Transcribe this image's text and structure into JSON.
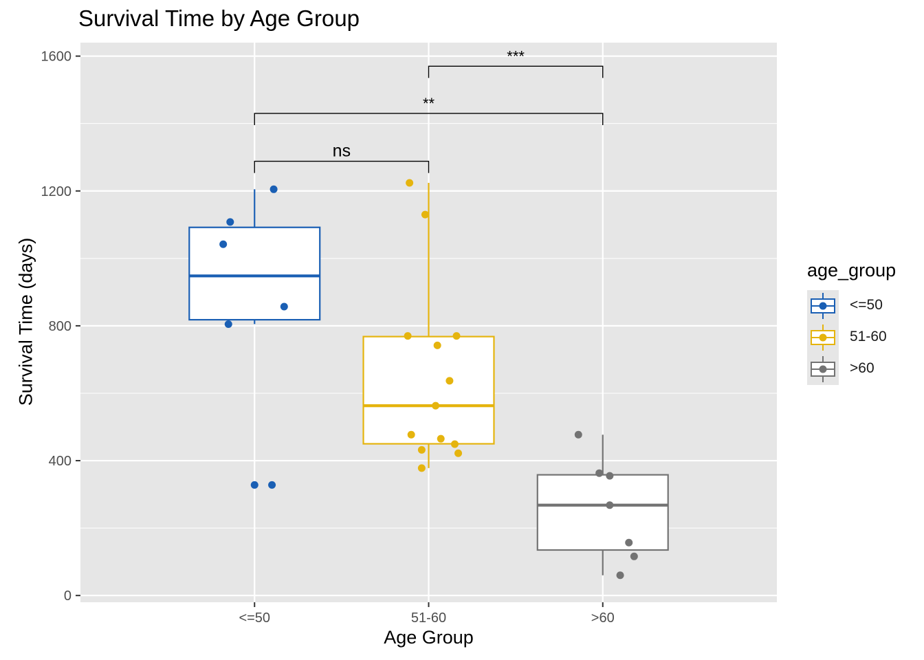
{
  "chart_data": {
    "type": "boxplot",
    "title": "Survival Time by Age Group",
    "xlabel": "Age Group",
    "ylabel": "Survival Time (days)",
    "ylim": [
      -20,
      1640
    ],
    "yticks": [
      0,
      400,
      800,
      1200,
      1600
    ],
    "categories": [
      "<=50",
      "51-60",
      ">60"
    ],
    "grid": true,
    "legend": {
      "title": "age_group",
      "position": "right",
      "entries": [
        "<=50",
        "51-60",
        ">60"
      ]
    },
    "series": [
      {
        "category": "<=50",
        "color": "#1a5fb4",
        "box": {
          "whisker_low": 805,
          "q1": 818,
          "median": 948,
          "q3": 1092,
          "whisker_high": 1205
        },
        "points": [
          {
            "x": 0.11,
            "y": 1205
          },
          {
            "x": -0.14,
            "y": 1108
          },
          {
            "x": -0.18,
            "y": 1042
          },
          {
            "x": 0.17,
            "y": 857
          },
          {
            "x": -0.15,
            "y": 805
          },
          {
            "x": 0.0,
            "y": 328
          },
          {
            "x": 0.1,
            "y": 328
          }
        ]
      },
      {
        "category": "51-60",
        "color": "#e5b40e",
        "box": {
          "whisker_low": 378,
          "q1": 450,
          "median": 563,
          "q3": 768,
          "whisker_high": 1224
        },
        "points": [
          {
            "x": -0.11,
            "y": 1224
          },
          {
            "x": -0.02,
            "y": 1130
          },
          {
            "x": -0.12,
            "y": 770
          },
          {
            "x": 0.16,
            "y": 770
          },
          {
            "x": 0.05,
            "y": 742
          },
          {
            "x": 0.12,
            "y": 637
          },
          {
            "x": 0.04,
            "y": 563
          },
          {
            "x": -0.1,
            "y": 477
          },
          {
            "x": 0.07,
            "y": 465
          },
          {
            "x": 0.15,
            "y": 449
          },
          {
            "x": -0.04,
            "y": 432
          },
          {
            "x": 0.17,
            "y": 422
          },
          {
            "x": -0.04,
            "y": 378
          }
        ]
      },
      {
        "category": ">60",
        "color": "#737373",
        "box": {
          "whisker_low": 60,
          "q1": 135,
          "median": 268,
          "q3": 358,
          "whisker_high": 477
        },
        "points": [
          {
            "x": -0.14,
            "y": 477
          },
          {
            "x": -0.02,
            "y": 363
          },
          {
            "x": 0.04,
            "y": 355
          },
          {
            "x": 0.04,
            "y": 268
          },
          {
            "x": 0.15,
            "y": 157
          },
          {
            "x": 0.18,
            "y": 116
          },
          {
            "x": 0.1,
            "y": 60
          }
        ]
      }
    ],
    "annotations": [
      {
        "from": "<=50",
        "to": "51-60",
        "y": 1288,
        "label": "ns"
      },
      {
        "from": "<=50",
        "to": ">60",
        "y": 1430,
        "label": "**"
      },
      {
        "from": "51-60",
        "to": ">60",
        "y": 1570,
        "label": "***"
      }
    ]
  }
}
